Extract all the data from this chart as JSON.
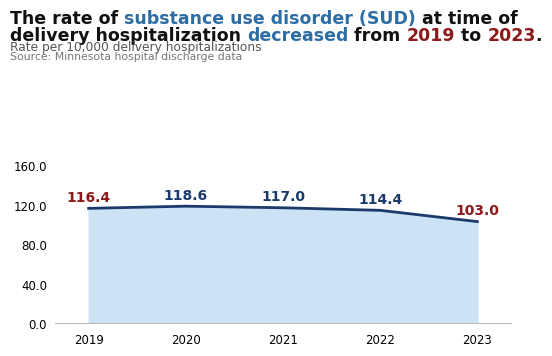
{
  "years": [
    2019,
    2020,
    2021,
    2022,
    2023
  ],
  "values": [
    116.4,
    118.6,
    117.0,
    114.4,
    103.0
  ],
  "line_color": "#1b3a6b",
  "fill_color": "#cce3f5",
  "label_colors": [
    "#8b1a1a",
    "#1b3a6b",
    "#1b3a6b",
    "#1b3a6b",
    "#8b1a1a"
  ],
  "ylim": [
    0,
    160
  ],
  "yticks": [
    0.0,
    40.0,
    80.0,
    120.0,
    160.0
  ],
  "line1_parts": [
    {
      "text": "The rate of ",
      "color": "#111111"
    },
    {
      "text": "substance use disorder (SUD)",
      "color": "#2e6da4"
    },
    {
      "text": " at time of",
      "color": "#111111"
    }
  ],
  "line2_parts": [
    {
      "text": "delivery hospitalization ",
      "color": "#111111"
    },
    {
      "text": "decreased",
      "color": "#2e6da4"
    },
    {
      "text": " from ",
      "color": "#111111"
    },
    {
      "text": "2019",
      "color": "#8b1a1a"
    },
    {
      "text": " to ",
      "color": "#111111"
    },
    {
      "text": "2023",
      "color": "#8b1a1a"
    },
    {
      "text": ".",
      "color": "#111111"
    }
  ],
  "subtitle": "Rate per 10,000 delivery hospitalizations",
  "source": "Source: Minnesota hospital discharge data",
  "background_color": "#ffffff",
  "title_fontsize": 12.5,
  "subtitle_fontsize": 8.8,
  "source_fontsize": 7.8,
  "tick_fontsize": 8.5,
  "label_fontsize": 10
}
